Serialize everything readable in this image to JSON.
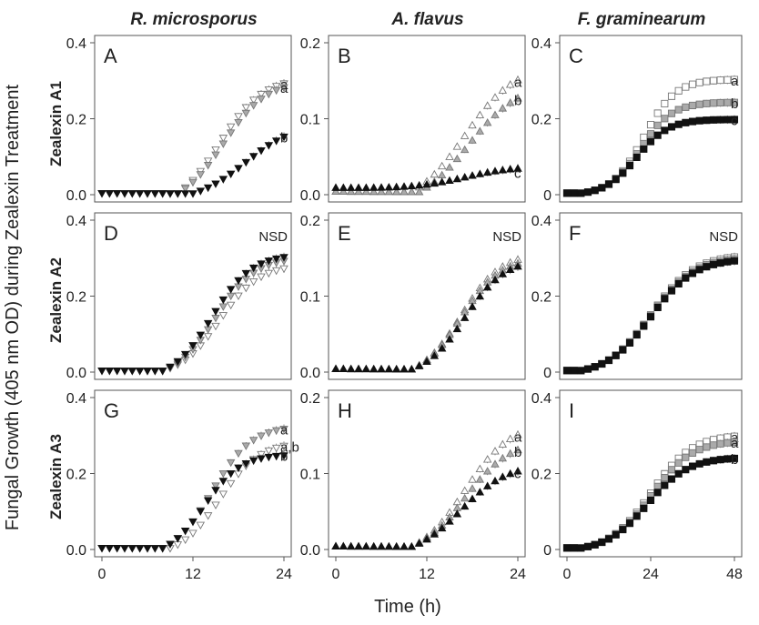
{
  "figure": {
    "ylabel": "Fungal Growth (405 nm OD) during Zealexin Treatment",
    "xlabel": "Time (h)",
    "columns": [
      "R. microsporus",
      "A. flavus",
      "F. graminearum"
    ],
    "rows": [
      "Zealexin A1",
      "Zealexin A2",
      "Zealexin A3"
    ]
  },
  "chart_data": [
    {
      "type": "scatter",
      "panel": "A",
      "column": 0,
      "row": 0,
      "xlim": [
        0,
        24
      ],
      "ylim": [
        0,
        0.4
      ],
      "xticks": [
        0,
        12,
        24
      ],
      "yticks": [
        0.0,
        0.2,
        0.4
      ],
      "ytick_labels": [
        "0.0",
        "0.2",
        "0.4"
      ],
      "xtick_labels": [
        "0",
        "12",
        "24"
      ],
      "series": [
        {
          "marker": "triangle-down",
          "fill": "#ffffff",
          "onset": 10,
          "mid": 15.5,
          "k": 0.35,
          "plateau": 0.33,
          "end": 0.29,
          "letter": "a"
        },
        {
          "marker": "triangle-down",
          "fill": "#aaaaaa",
          "onset": 10,
          "mid": 16,
          "k": 0.35,
          "plateau": 0.33,
          "end": 0.28,
          "letter": "a"
        },
        {
          "marker": "triangle-down",
          "fill": "#111111",
          "onset": 12,
          "mid": 19,
          "k": 0.3,
          "plateau": 0.22,
          "end": 0.15,
          "letter": "b"
        }
      ]
    },
    {
      "type": "scatter",
      "panel": "B",
      "column": 1,
      "row": 0,
      "xlim": [
        0,
        24
      ],
      "ylim": [
        0,
        0.2
      ],
      "xticks": [
        0,
        12,
        24
      ],
      "yticks": [
        0.0,
        0.1,
        0.2
      ],
      "ytick_labels": [
        "0.0",
        "0.1",
        "0.2"
      ],
      "xtick_labels": [
        "0",
        "12",
        "24"
      ],
      "series": [
        {
          "marker": "triangle-up",
          "fill": "#ffffff",
          "onset": 10,
          "mid": 17,
          "k": 0.3,
          "plateau": 0.19,
          "end": 0.148,
          "letter": "a"
        },
        {
          "marker": "triangle-up",
          "fill": "#aaaaaa",
          "onset": 11,
          "mid": 17.5,
          "k": 0.3,
          "plateau": 0.17,
          "end": 0.124,
          "letter": "b"
        },
        {
          "marker": "triangle-up",
          "fill": "#111111",
          "onset": 0,
          "mid": 17,
          "k": 0.3,
          "plateau": 0.035,
          "end": 0.028,
          "letter": "c"
        }
      ]
    },
    {
      "type": "scatter",
      "panel": "C",
      "column": 2,
      "row": 0,
      "xlim": [
        0,
        48
      ],
      "ylim": [
        0,
        0.4
      ],
      "xticks": [
        0,
        24,
        48
      ],
      "yticks": [
        0,
        0.2,
        0.4
      ],
      "ytick_labels": [
        "0",
        "0.2",
        "0.4"
      ],
      "xtick_labels": [
        "0",
        "24",
        "48"
      ],
      "series": [
        {
          "marker": "square",
          "fill": "#ffffff",
          "onset": 4,
          "mid": 22,
          "k": 0.22,
          "plateau": 0.31,
          "end": 0.3,
          "letter": "a"
        },
        {
          "marker": "square",
          "fill": "#aaaaaa",
          "onset": 4,
          "mid": 21,
          "k": 0.22,
          "plateau": 0.255,
          "end": 0.24,
          "letter": "b"
        },
        {
          "marker": "square",
          "fill": "#111111",
          "onset": 4,
          "mid": 20,
          "k": 0.22,
          "plateau": 0.205,
          "end": 0.195,
          "letter": "c"
        }
      ]
    },
    {
      "type": "scatter",
      "panel": "D",
      "column": 0,
      "row": 1,
      "xlim": [
        0,
        24
      ],
      "ylim": [
        0,
        0.4
      ],
      "xticks": [
        0,
        12,
        24
      ],
      "yticks": [
        0.0,
        0.2,
        0.4
      ],
      "ytick_labels": [
        "0.0",
        "0.2",
        "0.4"
      ],
      "xtick_labels": [
        "0",
        "12",
        "24"
      ],
      "annotation": "NSD",
      "series": [
        {
          "marker": "triangle-down",
          "fill": "#ffffff",
          "onset": 8,
          "mid": 15.5,
          "k": 0.38,
          "plateau": 0.31,
          "end": 0.27
        },
        {
          "marker": "triangle-down",
          "fill": "#aaaaaa",
          "onset": 8,
          "mid": 15,
          "k": 0.38,
          "plateau": 0.32,
          "end": 0.29
        },
        {
          "marker": "triangle-down",
          "fill": "#111111",
          "onset": 8,
          "mid": 14.5,
          "k": 0.38,
          "plateau": 0.32,
          "end": 0.3
        }
      ]
    },
    {
      "type": "scatter",
      "panel": "E",
      "column": 1,
      "row": 1,
      "xlim": [
        0,
        24
      ],
      "ylim": [
        0,
        0.2
      ],
      "xticks": [
        0,
        12,
        24
      ],
      "yticks": [
        0.0,
        0.1,
        0.2
      ],
      "ytick_labels": [
        "0.0",
        "0.1",
        "0.2"
      ],
      "xtick_labels": [
        "0",
        "12",
        "24"
      ],
      "annotation": "NSD",
      "series": [
        {
          "marker": "triangle-up",
          "fill": "#ffffff",
          "onset": 10,
          "mid": 16.5,
          "k": 0.38,
          "plateau": 0.165,
          "end": 0.145
        },
        {
          "marker": "triangle-up",
          "fill": "#aaaaaa",
          "onset": 10,
          "mid": 16.5,
          "k": 0.38,
          "plateau": 0.16,
          "end": 0.14
        },
        {
          "marker": "triangle-up",
          "fill": "#111111",
          "onset": 10,
          "mid": 17,
          "k": 0.38,
          "plateau": 0.16,
          "end": 0.136
        }
      ]
    },
    {
      "type": "scatter",
      "panel": "F",
      "column": 2,
      "row": 1,
      "xlim": [
        0,
        48
      ],
      "ylim": [
        0,
        0.4
      ],
      "xticks": [
        0,
        24,
        48
      ],
      "yticks": [
        0,
        0.2,
        0.4
      ],
      "ytick_labels": [
        "0",
        "0.2",
        "0.4"
      ],
      "xtick_labels": [
        "0",
        "24",
        "48"
      ],
      "annotation": "NSD",
      "series": [
        {
          "marker": "square",
          "fill": "#ffffff",
          "onset": 4,
          "mid": 24,
          "k": 0.16,
          "plateau": 0.35,
          "end": 0.3
        },
        {
          "marker": "square",
          "fill": "#aaaaaa",
          "onset": 4,
          "mid": 24,
          "k": 0.16,
          "plateau": 0.35,
          "end": 0.295
        },
        {
          "marker": "square",
          "fill": "#111111",
          "onset": 4,
          "mid": 24,
          "k": 0.16,
          "plateau": 0.345,
          "end": 0.29
        }
      ]
    },
    {
      "type": "scatter",
      "panel": "G",
      "column": 0,
      "row": 2,
      "xlim": [
        0,
        24
      ],
      "ylim": [
        0,
        0.4
      ],
      "xticks": [
        0,
        12,
        24
      ],
      "yticks": [
        0.0,
        0.2,
        0.4
      ],
      "ytick_labels": [
        "0.0",
        "0.2",
        "0.4"
      ],
      "xtick_labels": [
        "0",
        "12",
        "24"
      ],
      "series": [
        {
          "marker": "triangle-down",
          "fill": "#aaaaaa",
          "onset": 8,
          "mid": 14.5,
          "k": 0.38,
          "plateau": 0.35,
          "end": 0.315,
          "letter": "a"
        },
        {
          "marker": "triangle-down",
          "fill": "#ffffff",
          "onset": 9,
          "mid": 15.5,
          "k": 0.38,
          "plateau": 0.31,
          "end": 0.27,
          "letter": "a,b"
        },
        {
          "marker": "triangle-down",
          "fill": "#111111",
          "onset": 8,
          "mid": 13.5,
          "k": 0.42,
          "plateau": 0.26,
          "end": 0.245,
          "letter": "b"
        }
      ]
    },
    {
      "type": "scatter",
      "panel": "H",
      "column": 1,
      "row": 2,
      "xlim": [
        0,
        24
      ],
      "ylim": [
        0,
        0.2
      ],
      "xticks": [
        0,
        12,
        24
      ],
      "yticks": [
        0.0,
        0.1,
        0.2
      ],
      "ytick_labels": [
        "0.0",
        "0.1",
        "0.2"
      ],
      "xtick_labels": [
        "0",
        "12",
        "24"
      ],
      "series": [
        {
          "marker": "triangle-up",
          "fill": "#ffffff",
          "onset": 10,
          "mid": 17,
          "k": 0.33,
          "plateau": 0.19,
          "end": 0.148,
          "letter": "a"
        },
        {
          "marker": "triangle-up",
          "fill": "#aaaaaa",
          "onset": 10,
          "mid": 17,
          "k": 0.33,
          "plateau": 0.165,
          "end": 0.128,
          "letter": "b"
        },
        {
          "marker": "triangle-up",
          "fill": "#111111",
          "onset": 10,
          "mid": 16.5,
          "k": 0.33,
          "plateau": 0.125,
          "end": 0.1,
          "letter": "c"
        }
      ]
    },
    {
      "type": "scatter",
      "panel": "I",
      "column": 2,
      "row": 2,
      "xlim": [
        0,
        48
      ],
      "ylim": [
        0,
        0.4
      ],
      "xticks": [
        0,
        24,
        48
      ],
      "yticks": [
        0,
        0.2,
        0.4
      ],
      "ytick_labels": [
        "0",
        "0.2",
        "0.4"
      ],
      "xtick_labels": [
        "0",
        "24",
        "48"
      ],
      "series": [
        {
          "marker": "square",
          "fill": "#ffffff",
          "onset": 4,
          "mid": 24,
          "k": 0.17,
          "plateau": 0.34,
          "end": 0.295,
          "letter": "a"
        },
        {
          "marker": "square",
          "fill": "#aaaaaa",
          "onset": 4,
          "mid": 24,
          "k": 0.17,
          "plateau": 0.32,
          "end": 0.28,
          "letter": "a"
        },
        {
          "marker": "square",
          "fill": "#111111",
          "onset": 4,
          "mid": 23,
          "k": 0.17,
          "plateau": 0.265,
          "end": 0.237,
          "letter": "b"
        }
      ]
    }
  ]
}
